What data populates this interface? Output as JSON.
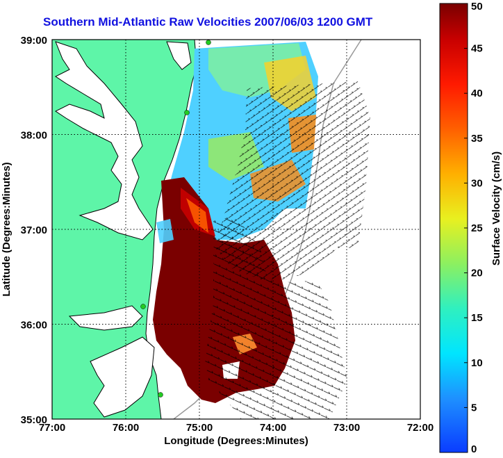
{
  "title": "Southern Mid-Atlantic Raw Velocities 2007/06/03 1200 GMT",
  "axes": {
    "xlabel": "Longitude (Degrees:Minutes)",
    "ylabel": "Latitude (Degrees:Minutes)",
    "x_ticks": [
      "77:00",
      "76:00",
      "75:00",
      "74:00",
      "73:00",
      "72:00"
    ],
    "y_ticks": [
      "39:00",
      "38:00",
      "37:00",
      "36:00",
      "35:00"
    ],
    "xlim": [
      -77,
      -72
    ],
    "ylim": [
      35,
      39
    ],
    "grid": "dotted"
  },
  "colorbar": {
    "label": "Surface Velocity (cm/s)",
    "ticks": [
      "50",
      "45",
      "40",
      "35",
      "30",
      "25",
      "20",
      "15",
      "10",
      "5",
      "0"
    ],
    "range": [
      0,
      50
    ]
  },
  "colors": {
    "land": "#5ef5a8",
    "water": "#ffffff",
    "title": "#1010e0",
    "station": "#22cc22"
  }
}
